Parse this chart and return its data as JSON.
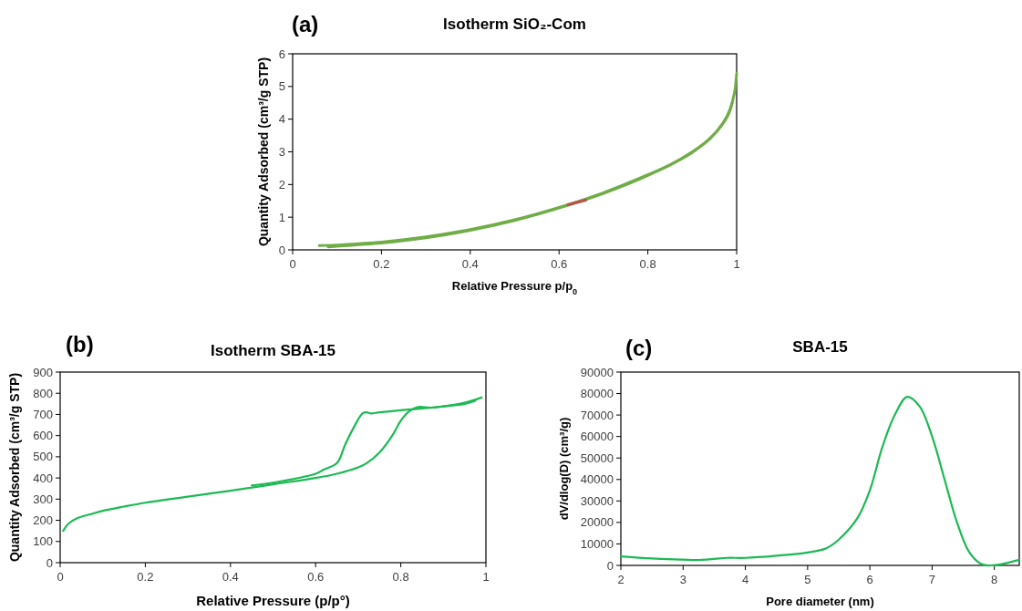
{
  "chart_data": [
    {
      "type": "line",
      "title": "Isotherm SiO₂-Com",
      "annotations": [
        "(a)"
      ],
      "xlabel": "Relative Pressure p/p$_{0}$",
      "ylabel": "Quantity Adsorbed (cm³/g STP)",
      "xlim": [
        0,
        1
      ],
      "xticks": [
        0,
        0.2,
        0.4,
        0.6,
        0.8,
        1
      ],
      "ylim": [
        0,
        6
      ],
      "yticks": [
        0,
        1,
        2,
        3,
        4,
        5,
        6
      ],
      "marker": "none",
      "line_style": "solid",
      "series": [
        {
          "color": "#70ad47",
          "x": [
            0.06,
            0.1,
            0.15,
            0.2,
            0.3,
            0.4,
            0.5,
            0.6,
            0.7,
            0.8,
            0.85,
            0.9,
            0.94,
            0.97,
            0.985,
            0.995,
            1.0
          ],
          "values": [
            0.13,
            0.15,
            0.19,
            0.24,
            0.4,
            0.62,
            0.92,
            1.3,
            1.75,
            2.3,
            2.6,
            3.0,
            3.4,
            3.9,
            4.3,
            4.8,
            5.4
          ]
        },
        {
          "color": "#70ad47",
          "x": [
            0.08,
            0.1,
            0.15,
            0.2,
            0.3,
            0.4,
            0.5,
            0.6,
            0.7,
            0.8,
            0.9,
            0.95,
            0.98,
            0.99
          ],
          "values": [
            0.09,
            0.11,
            0.16,
            0.21,
            0.37,
            0.6,
            0.9,
            1.28,
            1.73,
            2.28,
            2.98,
            3.55,
            4.1,
            4.5
          ]
        },
        {
          "color": "#c0504d",
          "x": [
            0.62,
            0.64,
            0.66
          ],
          "values": [
            1.38,
            1.45,
            1.52
          ]
        }
      ]
    },
    {
      "type": "line",
      "title": "Isotherm SBA-15",
      "annotations": [
        "(b)"
      ],
      "xlabel": "Relative Pressure (p/p°)",
      "ylabel": "Quantity Adsorbed (cm³/g STP)",
      "xlim": [
        0,
        1
      ],
      "xticks": [
        0,
        0.2,
        0.4,
        0.6,
        0.8,
        1
      ],
      "ylim": [
        0,
        900
      ],
      "yticks": [
        0,
        100,
        200,
        300,
        400,
        500,
        600,
        700,
        800,
        900
      ],
      "marker": "none",
      "line_style": "solid",
      "series": [
        {
          "color": "#1db954",
          "x": [
            0.007,
            0.02,
            0.04,
            0.07,
            0.1,
            0.15,
            0.2,
            0.3,
            0.4,
            0.5,
            0.6,
            0.65,
            0.7,
            0.72,
            0.75,
            0.78,
            0.8,
            0.82,
            0.84,
            0.87,
            0.9,
            0.95,
            0.99
          ],
          "values": [
            150,
            185,
            210,
            228,
            245,
            265,
            283,
            312,
            340,
            370,
            400,
            420,
            450,
            470,
            520,
            600,
            670,
            715,
            735,
            732,
            738,
            755,
            780
          ]
        },
        {
          "color": "#1db954",
          "x": [
            0.975,
            0.95,
            0.9,
            0.85,
            0.8,
            0.75,
            0.73,
            0.72,
            0.71,
            0.69,
            0.67,
            0.65,
            0.62,
            0.6,
            0.5,
            0.45
          ],
          "values": [
            765,
            750,
            738,
            728,
            720,
            710,
            705,
            710,
            705,
            640,
            560,
            470,
            440,
            420,
            378,
            365
          ]
        }
      ]
    },
    {
      "type": "line",
      "title": "SBA-15",
      "annotations": [
        "(c)"
      ],
      "xlabel": "Pore diameter (nm)",
      "ylabel": "dV/dlog(D) (cm³/g)",
      "xlim": [
        2,
        8.4
      ],
      "xticks": [
        2,
        3,
        4,
        5,
        6,
        7,
        8
      ],
      "ylim": [
        0,
        90000
      ],
      "yticks": [
        0,
        10000,
        20000,
        30000,
        40000,
        50000,
        60000,
        70000,
        80000,
        90000
      ],
      "marker": "none",
      "line_style": "solid",
      "series": [
        {
          "color": "#1db954",
          "x": [
            2,
            2.5,
            3,
            3.2,
            3.5,
            3.7,
            4,
            4.5,
            5,
            5.3,
            5.5,
            5.8,
            6,
            6.2,
            6.4,
            6.6,
            6.8,
            7,
            7.2,
            7.4,
            7.6,
            7.8,
            7.95,
            8.1,
            8.4
          ],
          "values": [
            4200,
            3200,
            2700,
            2500,
            3000,
            3500,
            3500,
            4500,
            6000,
            8000,
            12000,
            22000,
            35000,
            55000,
            70000,
            78500,
            74000,
            60000,
            40000,
            20000,
            6000,
            500,
            0,
            500,
            2600
          ]
        }
      ]
    }
  ]
}
